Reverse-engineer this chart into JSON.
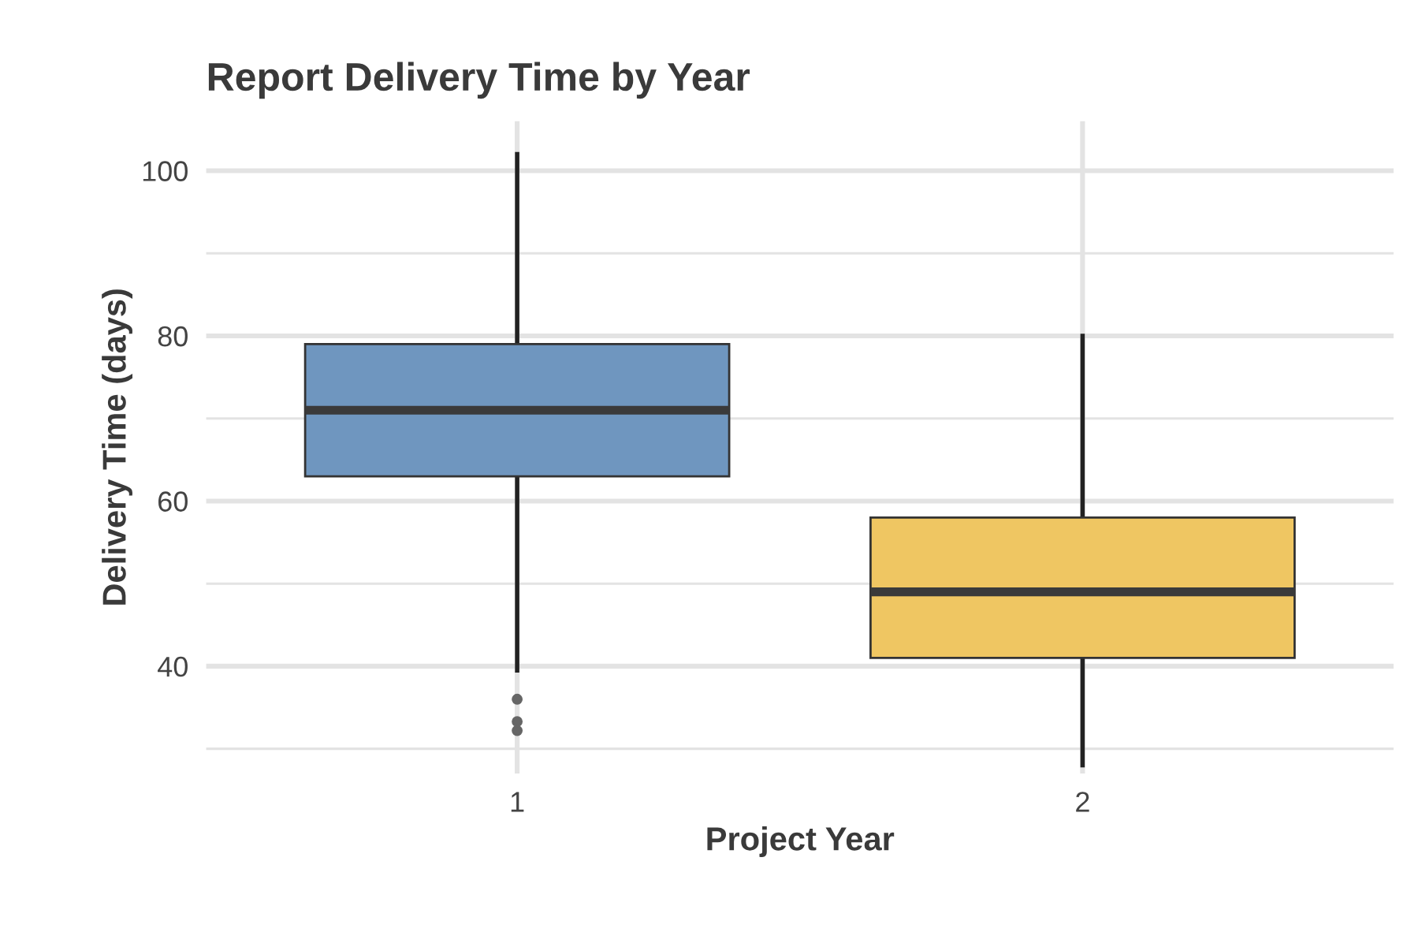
{
  "chart_data": {
    "type": "box",
    "title": "Report Delivery Time by Year",
    "xlabel": "Project Year",
    "ylabel": "Delivery Time (days)",
    "categories": [
      "1",
      "2"
    ],
    "series": [
      {
        "color": "#6f96bf",
        "boxes": [
          {
            "low": 39.5,
            "q1": 63,
            "median": 71,
            "q3": 79,
            "high": 102,
            "outliers": [
              36,
              33.3,
              32.2
            ]
          },
          null
        ]
      },
      {
        "color": "#efc662",
        "boxes": [
          null,
          {
            "low": 28,
            "q1": 41,
            "median": 49,
            "q3": 58,
            "high": 80
          }
        ]
      }
    ],
    "ylim": [
      27,
      106
    ],
    "yticks": [
      {
        "value": 30,
        "label": null
      },
      40,
      {
        "value": 50,
        "label": null
      },
      60,
      {
        "value": 70,
        "label": null
      },
      80,
      {
        "value": 90,
        "label": null
      },
      100
    ],
    "grid": true,
    "legend": false
  }
}
